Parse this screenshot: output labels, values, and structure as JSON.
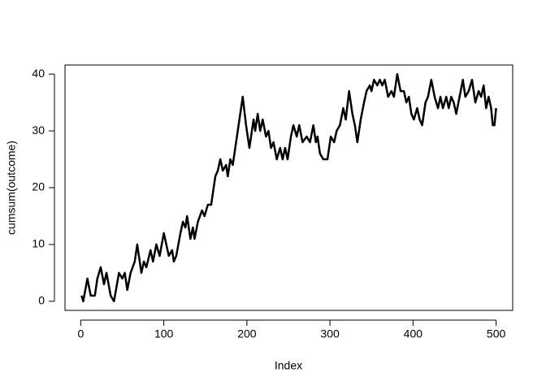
{
  "chart_data": {
    "type": "line",
    "x_label": "Index",
    "y_label": "cumsum(outcome)",
    "xlim": [
      -18.96,
      519.96
    ],
    "ylim": [
      -1.6,
      41.6
    ],
    "xticks": [
      0,
      100,
      200,
      300,
      400,
      500
    ],
    "yticks": [
      0,
      10,
      20,
      30,
      40
    ],
    "color": "#000000",
    "x": [
      1,
      3,
      8,
      12,
      17,
      20,
      24,
      28,
      31,
      36,
      40,
      46,
      50,
      53,
      56,
      60,
      65,
      68,
      73,
      76,
      79,
      84,
      87,
      91,
      95,
      100,
      106,
      110,
      112,
      115,
      120,
      123,
      126,
      128,
      132,
      135,
      137,
      141,
      146,
      149,
      153,
      157,
      162,
      165,
      168,
      171,
      175,
      177,
      180,
      183,
      190,
      193,
      195,
      199,
      203,
      208,
      210,
      213,
      216,
      219,
      223,
      226,
      229,
      232,
      236,
      240,
      243,
      246,
      249,
      253,
      256,
      260,
      263,
      267,
      272,
      276,
      280,
      283,
      285,
      288,
      292,
      297,
      301,
      305,
      308,
      312,
      316,
      319,
      323,
      327,
      330,
      333,
      337,
      341,
      344,
      348,
      350,
      353,
      357,
      360,
      363,
      366,
      370,
      374,
      377,
      381,
      385,
      389,
      392,
      395,
      398,
      401,
      405,
      408,
      411,
      415,
      418,
      422,
      426,
      430,
      433,
      436,
      440,
      443,
      446,
      449,
      452,
      456,
      460,
      463,
      467,
      471,
      475,
      479,
      482,
      485,
      488,
      491,
      494,
      496,
      498,
      500
    ],
    "values": [
      1,
      0,
      4,
      1,
      1,
      4,
      6,
      3,
      5,
      1,
      0,
      5,
      4,
      5,
      2,
      5,
      7,
      10,
      5,
      7,
      6,
      9,
      7,
      10,
      8,
      12,
      8,
      9,
      7,
      8,
      12,
      14,
      13,
      15,
      11,
      13,
      11,
      14,
      16,
      15,
      17,
      17,
      22,
      23,
      25,
      23,
      24,
      22,
      25,
      24,
      31,
      34,
      36,
      31,
      27,
      32,
      30,
      33,
      30,
      32,
      29,
      30,
      27,
      28,
      25,
      27,
      25,
      27,
      25,
      29,
      31,
      29,
      31,
      28,
      29,
      28,
      31,
      28,
      29,
      26,
      25,
      25,
      29,
      28,
      30,
      31,
      34,
      32,
      37,
      33,
      31,
      28,
      32,
      35,
      37,
      38,
      37,
      39,
      38,
      39,
      38,
      39,
      36,
      37,
      36,
      40,
      37,
      37,
      35,
      36,
      33,
      32,
      34,
      32,
      31,
      35,
      36,
      39,
      36,
      34,
      36,
      34,
      36,
      34,
      36,
      35,
      33,
      36,
      39,
      36,
      37,
      39,
      35,
      37,
      36,
      38,
      34,
      36,
      34,
      31,
      31,
      34
    ]
  }
}
